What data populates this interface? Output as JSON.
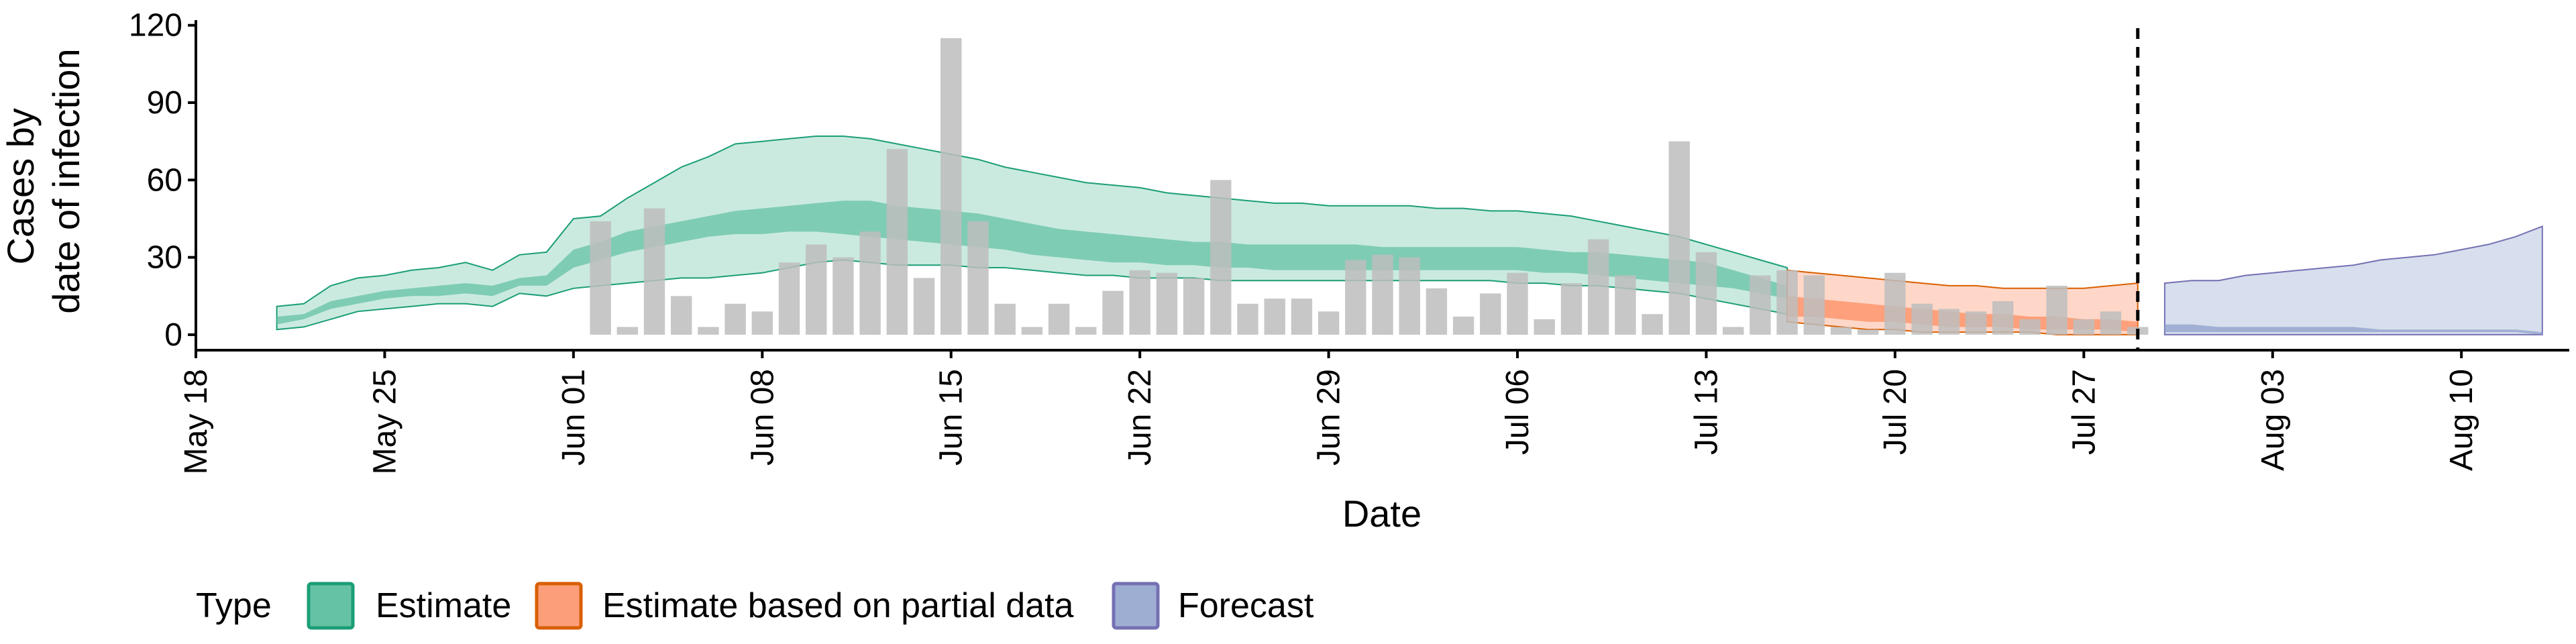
{
  "chart_data": {
    "type": "bar",
    "xlabel": "Date",
    "ylabel": [
      "Cases by",
      "date of infection"
    ],
    "ylim": [
      -6,
      122
    ],
    "x_range": [
      "2020-05-18",
      "2020-08-14"
    ],
    "y_ticks": [
      0,
      30,
      60,
      90,
      120
    ],
    "x_ticks": [
      {
        "date": "2020-05-18",
        "label": "May 18"
      },
      {
        "date": "2020-05-25",
        "label": "May 25"
      },
      {
        "date": "2020-06-01",
        "label": "Jun 01"
      },
      {
        "date": "2020-06-08",
        "label": "Jun 08"
      },
      {
        "date": "2020-06-15",
        "label": "Jun 15"
      },
      {
        "date": "2020-06-22",
        "label": "Jun 22"
      },
      {
        "date": "2020-06-29",
        "label": "Jun 29"
      },
      {
        "date": "2020-07-06",
        "label": "Jul 06"
      },
      {
        "date": "2020-07-13",
        "label": "Jul 13"
      },
      {
        "date": "2020-07-20",
        "label": "Jul 20"
      },
      {
        "date": "2020-07-27",
        "label": "Jul 27"
      },
      {
        "date": "2020-08-03",
        "label": "Aug 03"
      },
      {
        "date": "2020-08-10",
        "label": "Aug 10"
      }
    ],
    "grid": false,
    "legend_position": "bottom",
    "legend_title": "Type",
    "forecast_start_date": "2020-07-29",
    "bars": {
      "color": "#bdbdbd",
      "dates": [
        "2020-06-02",
        "2020-06-03",
        "2020-06-04",
        "2020-06-05",
        "2020-06-06",
        "2020-06-07",
        "2020-06-08",
        "2020-06-09",
        "2020-06-10",
        "2020-06-11",
        "2020-06-12",
        "2020-06-13",
        "2020-06-14",
        "2020-06-15",
        "2020-06-16",
        "2020-06-17",
        "2020-06-18",
        "2020-06-19",
        "2020-06-20",
        "2020-06-21",
        "2020-06-22",
        "2020-06-23",
        "2020-06-24",
        "2020-06-25",
        "2020-06-26",
        "2020-06-27",
        "2020-06-28",
        "2020-06-29",
        "2020-06-30",
        "2020-07-01",
        "2020-07-02",
        "2020-07-03",
        "2020-07-04",
        "2020-07-05",
        "2020-07-06",
        "2020-07-07",
        "2020-07-08",
        "2020-07-09",
        "2020-07-10",
        "2020-07-11",
        "2020-07-12",
        "2020-07-13",
        "2020-07-14",
        "2020-07-15",
        "2020-07-16",
        "2020-07-17",
        "2020-07-18",
        "2020-07-19",
        "2020-07-20",
        "2020-07-21",
        "2020-07-22",
        "2020-07-23",
        "2020-07-24",
        "2020-07-25",
        "2020-07-26",
        "2020-07-27",
        "2020-07-28",
        "2020-07-29"
      ],
      "values": [
        44,
        3,
        49,
        15,
        3,
        12,
        9,
        28,
        35,
        30,
        40,
        72,
        22,
        115,
        44,
        12,
        3,
        12,
        3,
        17,
        25,
        24,
        22,
        60,
        12,
        14,
        14,
        9,
        29,
        31,
        30,
        18,
        7,
        16,
        24,
        6,
        20,
        37,
        23,
        8,
        75,
        32,
        3,
        23,
        25,
        23,
        3,
        2,
        24,
        12,
        10,
        9,
        13,
        6,
        19,
        6,
        9,
        3
      ]
    },
    "series": [
      {
        "name": "Estimate",
        "color": "#1b9e77",
        "fill": "#66c2a5",
        "dates": [
          "2020-05-21",
          "2020-05-22",
          "2020-05-23",
          "2020-05-24",
          "2020-05-25",
          "2020-05-26",
          "2020-05-27",
          "2020-05-28",
          "2020-05-29",
          "2020-05-30",
          "2020-05-31",
          "2020-06-01",
          "2020-06-02",
          "2020-06-03",
          "2020-06-04",
          "2020-06-05",
          "2020-06-06",
          "2020-06-07",
          "2020-06-08",
          "2020-06-09",
          "2020-06-10",
          "2020-06-11",
          "2020-06-12",
          "2020-06-13",
          "2020-06-14",
          "2020-06-15",
          "2020-06-16",
          "2020-06-17",
          "2020-06-18",
          "2020-06-19",
          "2020-06-20",
          "2020-06-21",
          "2020-06-22",
          "2020-06-23",
          "2020-06-24",
          "2020-06-25",
          "2020-06-26",
          "2020-06-27",
          "2020-06-28",
          "2020-06-29",
          "2020-06-30",
          "2020-07-01",
          "2020-07-02",
          "2020-07-03",
          "2020-07-04",
          "2020-07-05",
          "2020-07-06",
          "2020-07-07",
          "2020-07-08",
          "2020-07-09",
          "2020-07-10",
          "2020-07-11",
          "2020-07-12",
          "2020-07-13",
          "2020-07-14",
          "2020-07-15",
          "2020-07-16"
        ],
        "lower90": [
          2,
          3,
          6,
          9,
          10,
          11,
          12,
          12,
          11,
          16,
          15,
          18,
          19,
          20,
          21,
          22,
          22,
          23,
          24,
          26,
          28,
          29,
          28,
          27,
          27,
          27,
          26,
          26,
          25,
          24,
          23,
          23,
          22,
          22,
          22,
          21,
          21,
          21,
          21,
          21,
          21,
          21,
          21,
          21,
          21,
          21,
          20,
          20,
          19,
          19,
          18,
          17,
          16,
          14,
          12,
          10,
          8
        ],
        "lower50": [
          4,
          6,
          10,
          12,
          14,
          15,
          15,
          16,
          15,
          19,
          19,
          26,
          29,
          32,
          34,
          36,
          38,
          39,
          39,
          40,
          40,
          39,
          38,
          37,
          36,
          35,
          34,
          33,
          31,
          30,
          29,
          28,
          28,
          27,
          27,
          26,
          26,
          25,
          25,
          25,
          25,
          25,
          25,
          25,
          25,
          25,
          25,
          24,
          24,
          23,
          22,
          21,
          20,
          19,
          18,
          16,
          14
        ],
        "upper50": [
          7,
          8,
          13,
          15,
          17,
          18,
          19,
          20,
          19,
          22,
          23,
          33,
          36,
          40,
          42,
          44,
          46,
          48,
          49,
          50,
          51,
          52,
          52,
          50,
          49,
          48,
          47,
          45,
          43,
          41,
          40,
          39,
          38,
          37,
          36,
          36,
          35,
          35,
          35,
          35,
          35,
          34,
          34,
          34,
          34,
          34,
          34,
          33,
          32,
          32,
          31,
          30,
          29,
          28,
          25,
          22,
          19
        ],
        "upper90": [
          11,
          12,
          19,
          22,
          23,
          25,
          26,
          28,
          25,
          31,
          32,
          45,
          46,
          53,
          59,
          65,
          69,
          74,
          75,
          76,
          77,
          77,
          76,
          74,
          72,
          70,
          68,
          65,
          63,
          61,
          59,
          58,
          57,
          55,
          54,
          53,
          52,
          51,
          51,
          50,
          50,
          50,
          50,
          49,
          49,
          48,
          48,
          47,
          46,
          44,
          42,
          40,
          38,
          35,
          32,
          29,
          26
        ]
      },
      {
        "name": "Estimate based on partial data",
        "color": "#d95f02",
        "fill": "#fc8d62",
        "dates": [
          "2020-07-16",
          "2020-07-17",
          "2020-07-18",
          "2020-07-19",
          "2020-07-20",
          "2020-07-21",
          "2020-07-22",
          "2020-07-23",
          "2020-07-24",
          "2020-07-25",
          "2020-07-26",
          "2020-07-27",
          "2020-07-28",
          "2020-07-29"
        ],
        "lower90": [
          5,
          4,
          3,
          2,
          2,
          1,
          1,
          1,
          1,
          1,
          0,
          0,
          0,
          0
        ],
        "lower50": [
          7,
          7,
          6,
          5,
          5,
          4,
          3,
          3,
          3,
          2,
          2,
          2,
          2,
          1
        ],
        "upper50": [
          15,
          14,
          13,
          12,
          11,
          10,
          9,
          8,
          8,
          7,
          7,
          6,
          6,
          5
        ],
        "upper90": [
          25,
          24,
          23,
          22,
          21,
          20,
          19,
          19,
          18,
          18,
          18,
          18,
          19,
          20
        ]
      },
      {
        "name": "Forecast",
        "color": "#7570b3",
        "fill": "#8da0cb",
        "dates": [
          "2020-07-30",
          "2020-07-31",
          "2020-08-01",
          "2020-08-02",
          "2020-08-03",
          "2020-08-04",
          "2020-08-05",
          "2020-08-06",
          "2020-08-07",
          "2020-08-08",
          "2020-08-09",
          "2020-08-10",
          "2020-08-11",
          "2020-08-12",
          "2020-08-13"
        ],
        "lower90": [
          0,
          0,
          0,
          0,
          0,
          0,
          0,
          0,
          0,
          0,
          0,
          0,
          0,
          0,
          0
        ],
        "lower50": [
          1,
          1,
          1,
          1,
          1,
          1,
          1,
          1,
          1,
          1,
          1,
          1,
          1,
          1,
          0
        ],
        "upper50": [
          4,
          4,
          3,
          3,
          3,
          3,
          3,
          3,
          2,
          2,
          2,
          2,
          2,
          2,
          1
        ],
        "upper90": [
          20,
          21,
          21,
          23,
          24,
          25,
          26,
          27,
          29,
          30,
          31,
          33,
          35,
          38,
          42
        ]
      }
    ]
  }
}
